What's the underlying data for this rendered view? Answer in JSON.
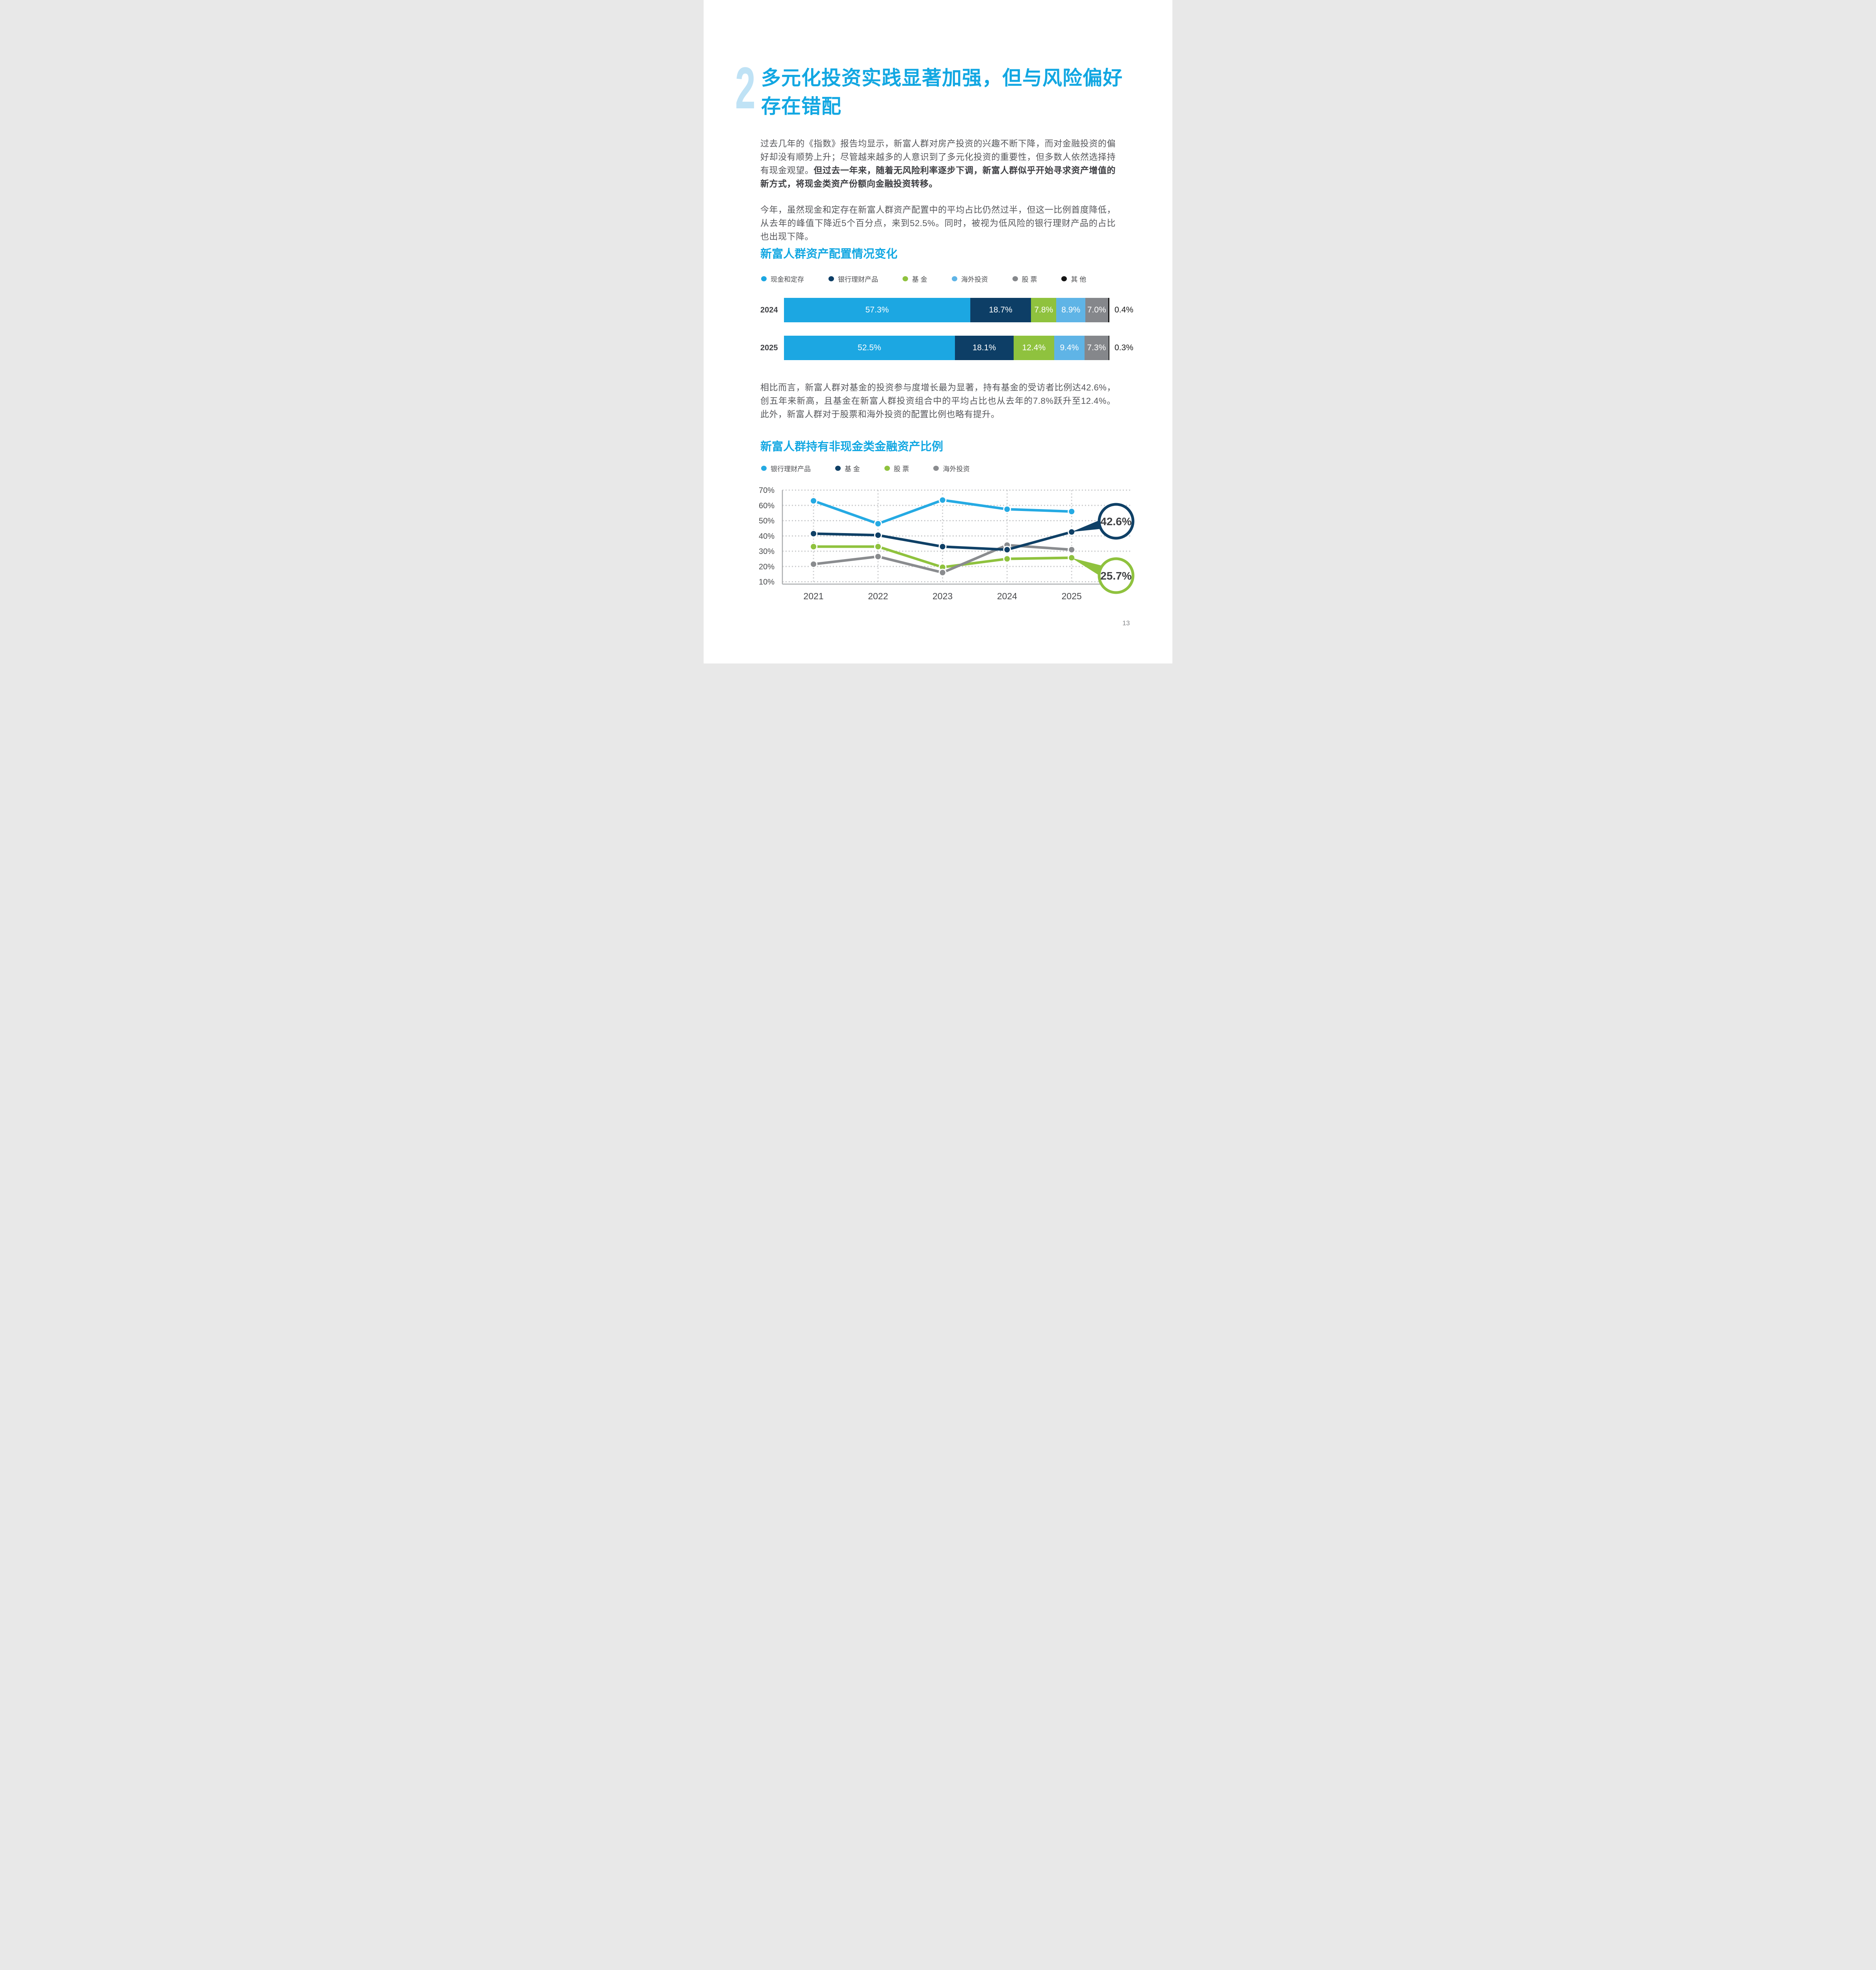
{
  "page": {
    "number": "13"
  },
  "header": {
    "section_number": "2",
    "title_line1": "多元化投资实践显著加强，但与风险偏好",
    "title_line2": "存在错配",
    "accent_color": "#12a7e2",
    "numeral_color": "#bfe2f5"
  },
  "paragraphs": {
    "p1_normal": "过去几年的《指数》报告均显示，新富人群对房产投资的兴趣不断下降，而对金融投资的偏好却没有顺势上升；尽管越来越多的人意识到了多元化投资的重要性，但多数人依然选择持有现金观望。",
    "p1_bold": "但过去一年来，随着无风险利率逐步下调，新富人群似乎开始寻求资产增值的新方式，将现金类资产份额向金融投资转移。",
    "p2": "今年，虽然现金和定存在新富人群资产配置中的平均占比仍然过半，但这一比例首度降低，从去年的峰值下降近5个百分点，来到52.5%。同时，被视为低风险的银行理财产品的占比也出现下降。",
    "p3": "相比而言，新富人群对基金的投资参与度增长最为显著，持有基金的受访者比例达42.6%，创五年来新高，且基金在新富人群投资组合中的平均占比也从去年的7.8%跃升至12.4%。此外，新富人群对于股票和海外投资的配置比例也略有提升。"
  },
  "chart_data": [
    {
      "type": "bar",
      "subtype": "stacked-horizontal",
      "title": "新富人群资产配置情况变化",
      "categories": [
        "2024",
        "2025"
      ],
      "series": [
        {
          "name": "现金和定存",
          "color": "#1ca7e2",
          "values": [
            57.3,
            52.5
          ]
        },
        {
          "name": "银行理财产品",
          "color": "#0d3e66",
          "values": [
            18.7,
            18.1
          ]
        },
        {
          "name": "基 金",
          "color": "#8fc23e",
          "values": [
            7.8,
            12.4
          ]
        },
        {
          "name": "海外投资",
          "color": "#5fb4e6",
          "values": [
            8.9,
            9.4
          ]
        },
        {
          "name": "股 票",
          "color": "#85878b",
          "values": [
            7.0,
            7.3
          ]
        },
        {
          "name": "其 他",
          "color": "#141414",
          "values": [
            0.4,
            0.3
          ]
        }
      ],
      "value_suffix": "%",
      "xlim": [
        0,
        100
      ],
      "legend_position": "top"
    },
    {
      "type": "line",
      "title": "新富人群持有非现金类金融资产比例",
      "x": [
        "2021",
        "2022",
        "2023",
        "2024",
        "2025"
      ],
      "ylim": [
        10,
        70
      ],
      "ytick_step": 10,
      "ytick_labels": [
        "70%",
        "60%",
        "50%",
        "40%",
        "30%",
        "20%",
        "10%"
      ],
      "grid": "dotted",
      "legend_position": "top",
      "series": [
        {
          "name": "银行理财产品",
          "color": "#25aae3",
          "values": [
            63,
            48,
            63.5,
            57.5,
            56
          ]
        },
        {
          "name": "基 金",
          "color": "#0f4066",
          "values": [
            41.5,
            40.5,
            33,
            31,
            42.6
          ]
        },
        {
          "name": "股 票",
          "color": "#8fc23e",
          "values": [
            33,
            33,
            19.5,
            25,
            25.7
          ]
        },
        {
          "name": "海外投资",
          "color": "#8a8c8f",
          "values": [
            21.5,
            26.5,
            16,
            34,
            31
          ]
        }
      ],
      "callouts": [
        {
          "text": "42.6%",
          "series_index": 1
        },
        {
          "text": "25.7%",
          "series_index": 2
        }
      ]
    }
  ]
}
